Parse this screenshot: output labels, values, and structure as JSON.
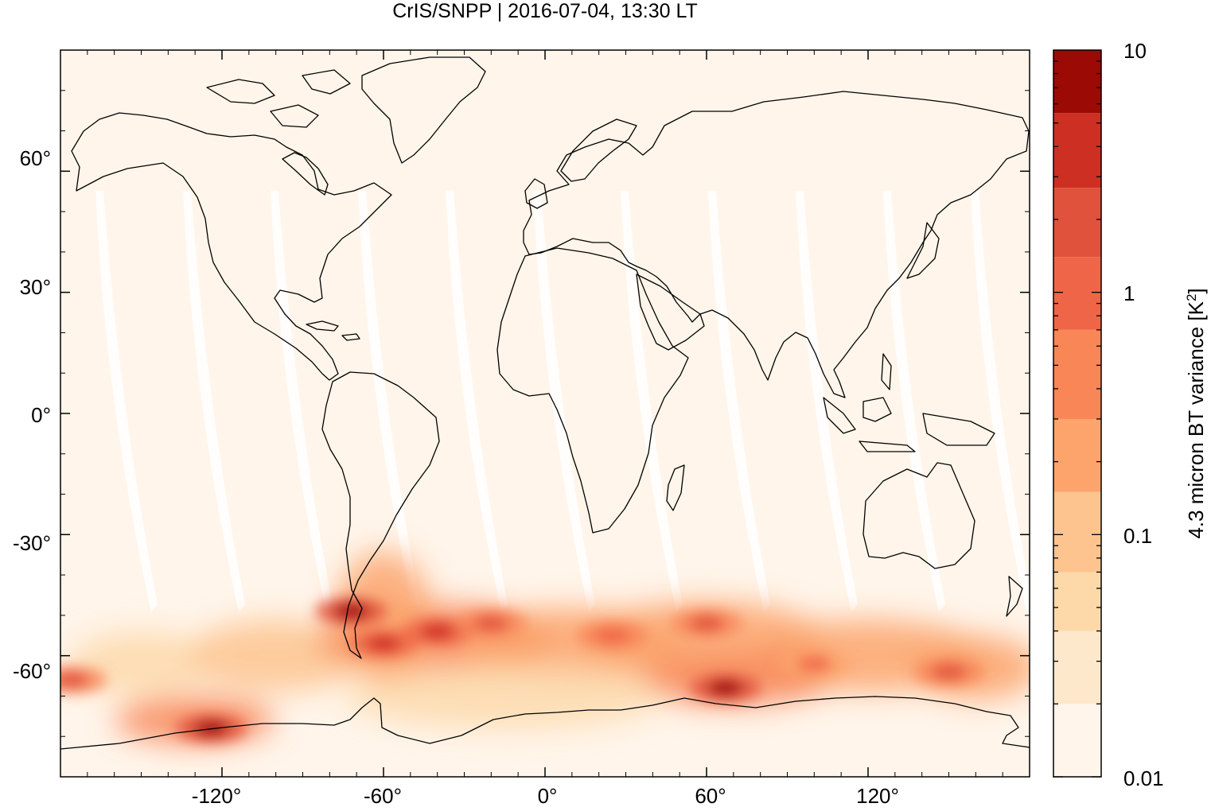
{
  "chart_data": {
    "type": "heatmap",
    "title": "CrIS/SNPP | 2016-07-04, 13:30 LT",
    "projection": "equirectangular",
    "xlim": [
      -180,
      180
    ],
    "ylim": [
      -90,
      90
    ],
    "x_ticks": [
      {
        "value": -120,
        "label": "-120°"
      },
      {
        "value": -60,
        "label": "-60°"
      },
      {
        "value": 0,
        "label": "0°"
      },
      {
        "value": 60,
        "label": "60°"
      },
      {
        "value": 120,
        "label": "120°"
      }
    ],
    "y_ticks": [
      {
        "value": 60,
        "label": "60°"
      },
      {
        "value": 30,
        "label": "30°"
      },
      {
        "value": 0,
        "label": "0°"
      },
      {
        "value": -30,
        "label": "-30°"
      },
      {
        "value": -60,
        "label": "-60°"
      }
    ],
    "colorbar": {
      "label": "4.3 micron BT variance [K",
      "label_sup": "2",
      "label_end": "]",
      "scale": "log",
      "range": [
        0.01,
        10
      ],
      "tick_labels": [
        {
          "value": 10,
          "label": "10"
        },
        {
          "value": 1,
          "label": "1"
        },
        {
          "value": 0.1,
          "label": "0.1"
        },
        {
          "value": 0.01,
          "label": "0.01"
        }
      ],
      "bands": [
        {
          "from": 0.01,
          "to": 0.02,
          "color": "#fff5ea"
        },
        {
          "from": 0.02,
          "to": 0.04,
          "color": "#fde8cc"
        },
        {
          "from": 0.04,
          "to": 0.07,
          "color": "#fdd9aa"
        },
        {
          "from": 0.07,
          "to": 0.15,
          "color": "#fdc48f"
        },
        {
          "from": 0.15,
          "to": 0.3,
          "color": "#fca46c"
        },
        {
          "from": 0.3,
          "to": 0.7,
          "color": "#f88657"
        },
        {
          "from": 0.7,
          "to": 1.4,
          "color": "#ee6647"
        },
        {
          "from": 1.4,
          "to": 2.7,
          "color": "#e0523b"
        },
        {
          "from": 2.7,
          "to": 5.5,
          "color": "#cd2f22"
        },
        {
          "from": 5.5,
          "to": 10,
          "color": "#9c0a05"
        }
      ]
    },
    "hotspots": [
      {
        "lon": -124,
        "lat": -78,
        "value": 8.5
      },
      {
        "lon": -72,
        "lat": -49,
        "value": 6.0
      },
      {
        "lon": -60,
        "lat": -57,
        "value": 5.0
      },
      {
        "lon": 67,
        "lat": -68,
        "value": 8.0
      },
      {
        "lon": -40,
        "lat": -54,
        "value": 3.0
      },
      {
        "lon": -20,
        "lat": -52,
        "value": 1.5
      },
      {
        "lon": 25,
        "lat": -55,
        "value": 1.2
      },
      {
        "lon": 60,
        "lat": -52,
        "value": 1.5
      },
      {
        "lon": 150,
        "lat": -64,
        "value": 1.5
      },
      {
        "lon": -176,
        "lat": -66,
        "value": 1.5
      },
      {
        "lon": 100,
        "lat": -62,
        "value": 1.0
      }
    ],
    "colors": {
      "background": "#fff5ea",
      "gap": "#ffffff",
      "coast": "#000000"
    }
  }
}
